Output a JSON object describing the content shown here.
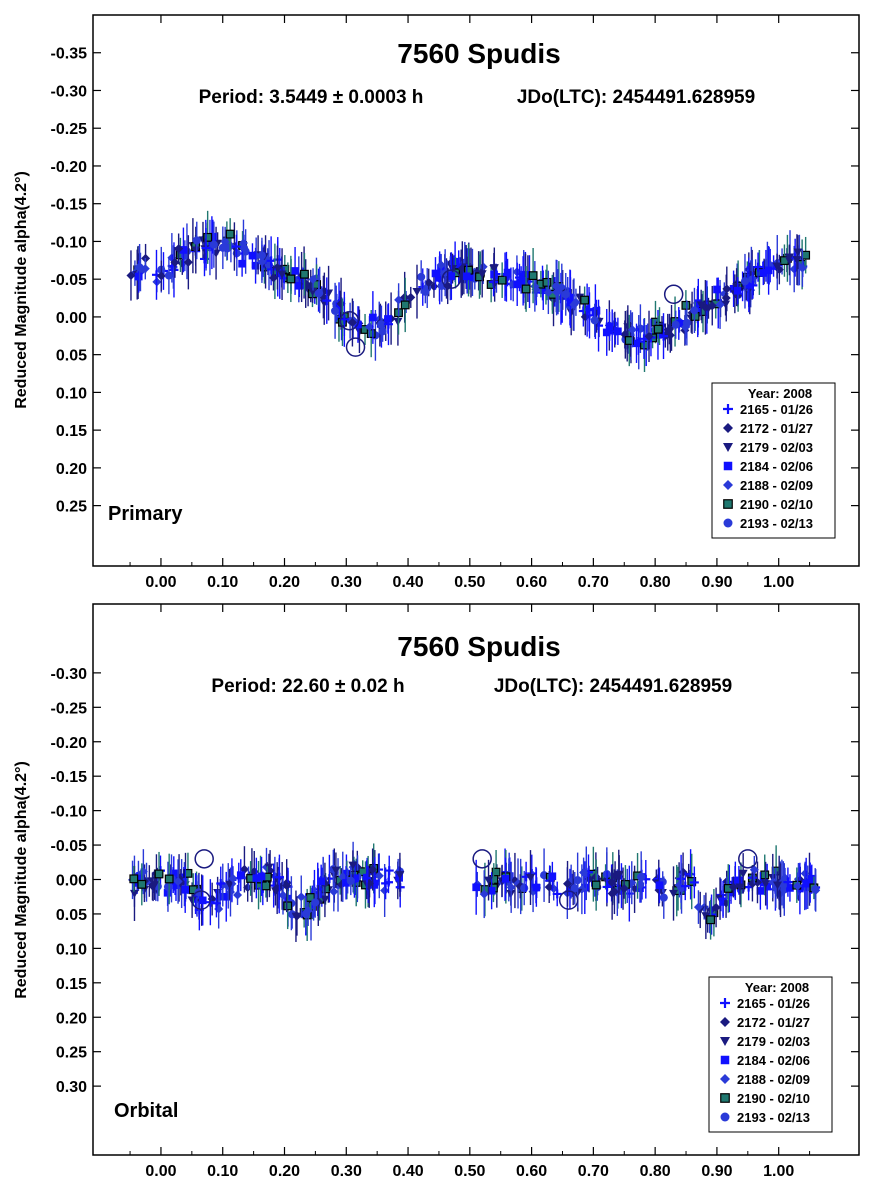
{
  "colors": {
    "blue": "#1010ff",
    "royal": "#2a3ad8",
    "navy": "#1a1a80",
    "teal": "#207870",
    "dark": "#0a0a50"
  },
  "chart_data": [
    {
      "type": "scatter",
      "title": "7560 Spudis",
      "subtitle_left": "Period: 3.5449 ± 0.0003 h",
      "subtitle_right": "JDo(LTC): 2454491.628959",
      "ylabel": "Reduced Magnitude alpha(4.2°)",
      "xlabel": "",
      "panel_label": "Primary",
      "xlim": [
        -0.11,
        1.13
      ],
      "ylim": [
        0.33,
        -0.4
      ],
      "y_inverted": true,
      "x_ticks": [
        "0.00",
        "0.10",
        "0.20",
        "0.30",
        "0.40",
        "0.50",
        "0.60",
        "0.70",
        "0.80",
        "0.90",
        "1.00"
      ],
      "y_ticks": [
        "-0.35",
        "-0.30",
        "-0.25",
        "-0.20",
        "-0.15",
        "-0.10",
        "-0.05",
        "0.00",
        "0.05",
        "0.10",
        "0.15",
        "0.20",
        "0.25"
      ],
      "legend": {
        "title": "Year: 2008",
        "position": "bottom-right",
        "entries": [
          {
            "label": "2165 - 01/26",
            "marker": "plus",
            "color": "#1010ff"
          },
          {
            "label": "2172 - 01/27",
            "marker": "diamond",
            "color": "#1a1a80"
          },
          {
            "label": "2179 - 02/03",
            "marker": "triangle-down",
            "color": "#1a1a80"
          },
          {
            "label": "2184 - 02/06",
            "marker": "square",
            "color": "#1010ff"
          },
          {
            "label": "2188 - 02/09",
            "marker": "diamond",
            "color": "#2a3ad8"
          },
          {
            "label": "2190 - 02/10",
            "marker": "square-outlined",
            "color": "#207870"
          },
          {
            "label": "2193 - 02/13",
            "marker": "circle",
            "color": "#2a3ad8"
          }
        ]
      },
      "lightcurve": {
        "model": "bimodal",
        "points": [
          [
            -0.05,
            -0.06
          ],
          [
            0.0,
            -0.06
          ],
          [
            0.06,
            -0.09
          ],
          [
            0.1,
            -0.1
          ],
          [
            0.15,
            -0.08
          ],
          [
            0.2,
            -0.06
          ],
          [
            0.25,
            -0.04
          ],
          [
            0.3,
            0.0
          ],
          [
            0.33,
            0.02
          ],
          [
            0.37,
            0.0
          ],
          [
            0.42,
            -0.04
          ],
          [
            0.47,
            -0.06
          ],
          [
            0.52,
            -0.06
          ],
          [
            0.57,
            -0.05
          ],
          [
            0.62,
            -0.04
          ],
          [
            0.67,
            -0.02
          ],
          [
            0.72,
            0.01
          ],
          [
            0.77,
            0.03
          ],
          [
            0.82,
            0.02
          ],
          [
            0.87,
            -0.01
          ],
          [
            0.92,
            -0.03
          ],
          [
            0.97,
            -0.06
          ],
          [
            1.02,
            -0.08
          ],
          [
            1.05,
            -0.07
          ]
        ],
        "scatter_amplitude": 0.02,
        "n_points": 420
      }
    },
    {
      "type": "scatter",
      "title": "7560 Spudis",
      "subtitle_left": "Period: 22.60 ± 0.02 h",
      "subtitle_right": "JDo(LTC): 2454491.628959",
      "ylabel": "Reduced Magnitude alpha(4.2°)",
      "xlabel": "",
      "panel_label": "Orbital",
      "xlim": [
        -0.11,
        1.13
      ],
      "ylim": [
        0.4,
        -0.4
      ],
      "y_inverted": true,
      "x_ticks": [
        "0.00",
        "0.10",
        "0.20",
        "0.30",
        "0.40",
        "0.50",
        "0.60",
        "0.70",
        "0.80",
        "0.90",
        "1.00"
      ],
      "y_ticks": [
        "-0.30",
        "-0.25",
        "-0.20",
        "-0.15",
        "-0.10",
        "-0.05",
        "0.00",
        "0.05",
        "0.10",
        "0.15",
        "0.20",
        "0.25",
        "0.30"
      ],
      "legend": {
        "title": "Year: 2008",
        "position": "bottom-right",
        "entries": [
          {
            "label": "2165 - 01/26",
            "marker": "plus",
            "color": "#1010ff"
          },
          {
            "label": "2172 - 01/27",
            "marker": "diamond",
            "color": "#1a1a80"
          },
          {
            "label": "2179 - 02/03",
            "marker": "triangle-down",
            "color": "#1a1a80"
          },
          {
            "label": "2184 - 02/06",
            "marker": "square",
            "color": "#1010ff"
          },
          {
            "label": "2188 - 02/09",
            "marker": "diamond",
            "color": "#2a3ad8"
          },
          {
            "label": "2190 - 02/10",
            "marker": "square-outlined",
            "color": "#207870"
          },
          {
            "label": "2193 - 02/13",
            "marker": "circle",
            "color": "#2a3ad8"
          }
        ]
      },
      "lightcurve": {
        "model": "segments",
        "segments": [
          {
            "x_range": [
              -0.05,
              0.39
            ],
            "mean": 0.0,
            "amp": 0.03
          },
          {
            "x_range": [
              0.51,
              1.06
            ],
            "mean": 0.005,
            "amp": 0.025
          }
        ],
        "attenuation_events": [
          {
            "x_center": 0.08,
            "depth": 0.035,
            "width": 0.03
          },
          {
            "x_center": 0.23,
            "depth": 0.04,
            "width": 0.03
          },
          {
            "x_center": 0.89,
            "depth": 0.045,
            "width": 0.02
          }
        ],
        "n_points": 380
      }
    }
  ]
}
